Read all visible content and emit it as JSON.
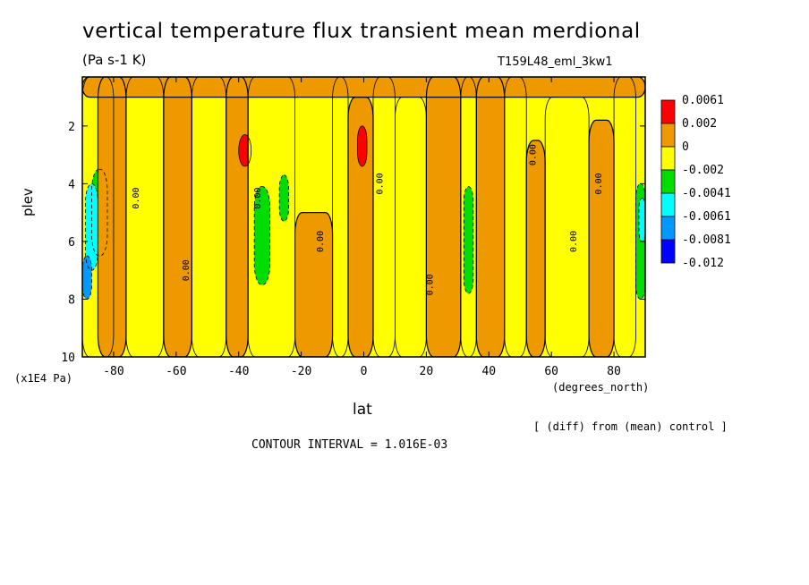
{
  "chart_data": {
    "type": "heatmap",
    "title": "vertical temperature flux transient mean merdional",
    "units": "(Pa s-1 K)",
    "run_label": "T159L48_eml_3kw1",
    "xlabel": "lat",
    "x_unit": "(degrees_north)",
    "ylabel": "plev",
    "y_unit": "(x1E4 Pa)",
    "diff_note": "[ (diff) from (mean) control ]",
    "contour_interval": "CONTOUR INTERVAL = 1.016E-03",
    "xlim": [
      -90,
      90
    ],
    "ylim": [
      10,
      0.3
    ],
    "x_ticks": [
      "-80",
      "-60",
      "-40",
      "-20",
      "0",
      "20",
      "40",
      "60",
      "80"
    ],
    "y_ticks": [
      "2",
      "4",
      "6",
      "8",
      "10"
    ],
    "colorbar": {
      "labels": [
        "0.0061",
        "0.002",
        "0",
        "-0.002",
        "-0.0041",
        "-0.0061",
        "-0.0081",
        "-0.012"
      ],
      "colors": [
        "#ff0000",
        "#ee9900",
        "#ffff00",
        "#00dd00",
        "#00ffff",
        "#0099ff",
        "#0000ff"
      ],
      "band_ranges": [
        [
          0.002,
          0.0061
        ],
        [
          0,
          0.002
        ],
        [
          -0.002,
          0
        ],
        [
          -0.0041,
          -0.002
        ],
        [
          -0.0061,
          -0.0041
        ],
        [
          -0.0081,
          -0.0061
        ],
        [
          -0.012,
          -0.0081
        ]
      ]
    },
    "contour_label": "0.00",
    "regions": [
      {
        "lat": [
          -90,
          -80
        ],
        "plev": [
          0.3,
          10
        ],
        "band": 2
      },
      {
        "lat": [
          -87,
          -82
        ],
        "plev": [
          3.5,
          6.5
        ],
        "band": 3
      },
      {
        "lat": [
          -89,
          -85
        ],
        "plev": [
          4,
          7
        ],
        "band": 4
      },
      {
        "lat": [
          -90,
          -87
        ],
        "plev": [
          6.5,
          8
        ],
        "band": 5
      },
      {
        "lat": [
          -85,
          -76
        ],
        "plev": [
          0.3,
          10
        ],
        "band": 1
      },
      {
        "lat": [
          -76,
          -64
        ],
        "plev": [
          0.3,
          10
        ],
        "band": 2
      },
      {
        "lat": [
          -64,
          -55
        ],
        "plev": [
          0.3,
          10
        ],
        "band": 1
      },
      {
        "lat": [
          -55,
          -44
        ],
        "plev": [
          0.3,
          10
        ],
        "band": 2
      },
      {
        "lat": [
          -44,
          -37
        ],
        "plev": [
          0.3,
          10
        ],
        "band": 1
      },
      {
        "lat": [
          -40,
          -36
        ],
        "plev": [
          2.3,
          3.4
        ],
        "band": 0
      },
      {
        "lat": [
          -37,
          -22
        ],
        "plev": [
          0.3,
          10
        ],
        "band": 2
      },
      {
        "lat": [
          -35,
          -30
        ],
        "plev": [
          4.1,
          7.5
        ],
        "band": 3
      },
      {
        "lat": [
          -27,
          -24
        ],
        "plev": [
          3.7,
          5.3
        ],
        "band": 3
      },
      {
        "lat": [
          -22,
          -10
        ],
        "plev": [
          5,
          10
        ],
        "band": 1
      },
      {
        "lat": [
          -10,
          -5
        ],
        "plev": [
          0.3,
          10
        ],
        "band": 2
      },
      {
        "lat": [
          -5,
          3
        ],
        "plev": [
          1,
          10
        ],
        "band": 1
      },
      {
        "lat": [
          -2,
          1
        ],
        "plev": [
          2,
          3.4
        ],
        "band": 0
      },
      {
        "lat": [
          3,
          10
        ],
        "plev": [
          0.3,
          10
        ],
        "band": 2
      },
      {
        "lat": [
          10,
          20
        ],
        "plev": [
          1,
          10
        ],
        "band": 2
      },
      {
        "lat": [
          20,
          31
        ],
        "plev": [
          0.3,
          10
        ],
        "band": 1
      },
      {
        "lat": [
          31,
          36
        ],
        "plev": [
          0.3,
          10
        ],
        "band": 2
      },
      {
        "lat": [
          32,
          35
        ],
        "plev": [
          4.1,
          7.8
        ],
        "band": 3
      },
      {
        "lat": [
          36,
          45
        ],
        "plev": [
          0.3,
          10
        ],
        "band": 1
      },
      {
        "lat": [
          45,
          52
        ],
        "plev": [
          0.3,
          10
        ],
        "band": 2
      },
      {
        "lat": [
          52,
          58
        ],
        "plev": [
          2.5,
          10
        ],
        "band": 1
      },
      {
        "lat": [
          58,
          72
        ],
        "plev": [
          1,
          10
        ],
        "band": 2
      },
      {
        "lat": [
          72,
          80
        ],
        "plev": [
          1.8,
          10
        ],
        "band": 1
      },
      {
        "lat": [
          80,
          87
        ],
        "plev": [
          0.3,
          10
        ],
        "band": 2
      },
      {
        "lat": [
          87,
          90
        ],
        "plev": [
          4,
          8
        ],
        "band": 3
      },
      {
        "lat": [
          88,
          90
        ],
        "plev": [
          4.5,
          6
        ],
        "band": 4
      },
      {
        "lat": [
          -90,
          90
        ],
        "plev": [
          0.3,
          1.0
        ],
        "band": 1
      }
    ]
  }
}
